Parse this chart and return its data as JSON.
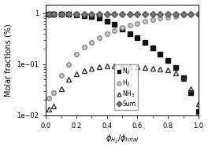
{
  "title": "",
  "xlabel": "$\\phi_{H_2}/\\phi_{total}$",
  "ylabel": "Molar fractions (%)",
  "xlim": [
    0.0,
    1.0
  ],
  "ylim": [
    0.01,
    1.5
  ],
  "background_color": "#ffffff",
  "N2_x": [
    0.02,
    0.05,
    0.1,
    0.15,
    0.2,
    0.25,
    0.3,
    0.35,
    0.4,
    0.45,
    0.5,
    0.55,
    0.6,
    0.65,
    0.7,
    0.75,
    0.8,
    0.85,
    0.9,
    0.95,
    1.0
  ],
  "N2_y": [
    0.97,
    0.97,
    0.96,
    0.95,
    0.93,
    0.91,
    0.87,
    0.8,
    0.7,
    0.6,
    0.5,
    0.4,
    0.33,
    0.27,
    0.21,
    0.16,
    0.12,
    0.085,
    0.055,
    0.028,
    0.012
  ],
  "H2_x": [
    0.02,
    0.05,
    0.1,
    0.15,
    0.2,
    0.25,
    0.3,
    0.35,
    0.4,
    0.45,
    0.5,
    0.55,
    0.6,
    0.65,
    0.7,
    0.75,
    0.8,
    0.85,
    0.9,
    0.95,
    1.0
  ],
  "H2_y": [
    0.022,
    0.028,
    0.06,
    0.1,
    0.16,
    0.22,
    0.27,
    0.33,
    0.4,
    0.46,
    0.52,
    0.58,
    0.64,
    0.7,
    0.76,
    0.8,
    0.84,
    0.88,
    0.92,
    0.95,
    0.97
  ],
  "NH3_x": [
    0.02,
    0.05,
    0.1,
    0.15,
    0.2,
    0.25,
    0.3,
    0.35,
    0.4,
    0.45,
    0.5,
    0.55,
    0.6,
    0.65,
    0.7,
    0.75,
    0.8,
    0.85,
    0.9,
    0.95,
    1.0
  ],
  "NH3_y": [
    0.013,
    0.015,
    0.033,
    0.05,
    0.065,
    0.075,
    0.082,
    0.088,
    0.092,
    0.093,
    0.091,
    0.09,
    0.088,
    0.086,
    0.083,
    0.081,
    0.077,
    0.068,
    0.053,
    0.033,
    0.017
  ],
  "Sum_x": [
    0.02,
    0.05,
    0.1,
    0.15,
    0.2,
    0.25,
    0.3,
    0.35,
    0.4,
    0.45,
    0.5,
    0.55,
    0.6,
    0.65,
    0.7,
    0.75,
    0.8,
    0.85,
    0.9,
    0.95,
    1.0
  ],
  "Sum_y": [
    0.98,
    0.98,
    0.98,
    0.98,
    0.98,
    0.98,
    0.98,
    0.98,
    0.98,
    0.98,
    0.98,
    0.98,
    0.98,
    0.98,
    0.98,
    0.98,
    0.98,
    0.98,
    0.98,
    0.98,
    0.98
  ],
  "legend_labels": [
    "N$_2$",
    "H$_2$",
    "NH$_3$",
    "Sum"
  ]
}
